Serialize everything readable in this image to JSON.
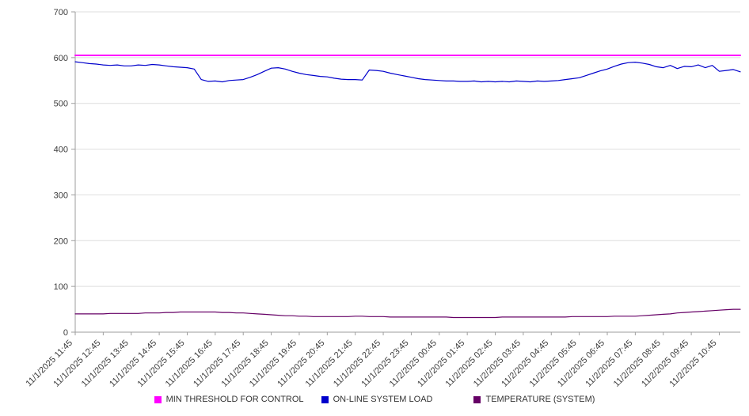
{
  "colors": {
    "grid": "#dedede",
    "axis": "#9e9e9e",
    "tick_text": "#3c3c3c",
    "background": "#ffffff",
    "threshold": "#ff00ff",
    "load": "#0000cc",
    "temperature": "#660066"
  },
  "legend": {
    "items": [
      {
        "label": "MIN THRESHOLD FOR CONTROL",
        "color": "#ff00ff"
      },
      {
        "label": "ON-LINE SYSTEM LOAD",
        "color": "#0000cc"
      },
      {
        "label": "TEMPERATURE (SYSTEM)",
        "color": "#660066"
      }
    ]
  },
  "chart_data": {
    "type": "line",
    "title": "",
    "xlabel": "",
    "ylabel": "",
    "ylim": [
      0,
      700
    ],
    "yticks": [
      0,
      100,
      200,
      300,
      400,
      500,
      600,
      700
    ],
    "grid": true,
    "legend_position": "bottom",
    "points_per_label": 4,
    "x_labels": [
      "11/1/2025 11:45",
      "11/1/2025 12:45",
      "11/1/2025 13:45",
      "11/1/2025 14:45",
      "11/1/2025 15:45",
      "11/1/2025 16:45",
      "11/1/2025 17:45",
      "11/1/2025 18:45",
      "11/1/2025 19:45",
      "11/1/2025 20:45",
      "11/1/2025 21:45",
      "11/1/2025 22:45",
      "11/1/2025 23:45",
      "11/2/2025 00:45",
      "11/2/2025 01:45",
      "11/2/2025 02:45",
      "11/2/2025 03:45",
      "11/2/2025 04:45",
      "11/2/2025 05:45",
      "11/2/2025 06:45",
      "11/2/2025 07:45",
      "11/2/2025 08:45",
      "11/2/2025 09:45",
      "11/2/2025 10:45"
    ],
    "series": [
      {
        "name": "MIN THRESHOLD FOR CONTROL",
        "color": "#ff00ff",
        "width": 2,
        "constant": 605
      },
      {
        "name": "ON-LINE SYSTEM LOAD",
        "color": "#0000cc",
        "width": 1.2,
        "values": [
          591,
          589,
          587,
          586,
          584,
          583,
          584,
          582,
          582,
          584,
          583,
          585,
          584,
          582,
          580,
          579,
          578,
          575,
          552,
          548,
          549,
          547,
          550,
          551,
          552,
          557,
          563,
          570,
          577,
          578,
          575,
          570,
          566,
          563,
          561,
          559,
          558,
          555,
          553,
          552,
          552,
          551,
          573,
          572,
          570,
          566,
          563,
          560,
          557,
          554,
          552,
          551,
          550,
          549,
          549,
          548,
          548,
          549,
          547,
          548,
          547,
          548,
          547,
          549,
          548,
          547,
          549,
          548,
          549,
          550,
          552,
          554,
          556,
          561,
          566,
          571,
          575,
          581,
          586,
          589,
          590,
          588,
          585,
          580,
          578,
          583,
          576,
          581,
          580,
          584,
          578,
          583,
          570,
          572,
          574,
          569
        ]
      },
      {
        "name": "TEMPERATURE (SYSTEM)",
        "color": "#660066",
        "width": 1.2,
        "values": [
          40,
          40,
          40,
          40,
          40,
          41,
          41,
          41,
          41,
          41,
          42,
          42,
          42,
          43,
          43,
          44,
          44,
          44,
          44,
          44,
          44,
          43,
          43,
          42,
          42,
          41,
          40,
          39,
          38,
          37,
          36,
          36,
          35,
          35,
          34,
          34,
          34,
          34,
          34,
          34,
          35,
          35,
          34,
          34,
          34,
          33,
          33,
          33,
          33,
          33,
          33,
          33,
          33,
          33,
          32,
          32,
          32,
          32,
          32,
          32,
          32,
          33,
          33,
          33,
          33,
          33,
          33,
          33,
          33,
          33,
          33,
          34,
          34,
          34,
          34,
          34,
          34,
          35,
          35,
          35,
          35,
          36,
          37,
          38,
          39,
          40,
          42,
          43,
          44,
          45,
          46,
          47,
          48,
          49,
          50,
          50
        ]
      }
    ]
  }
}
